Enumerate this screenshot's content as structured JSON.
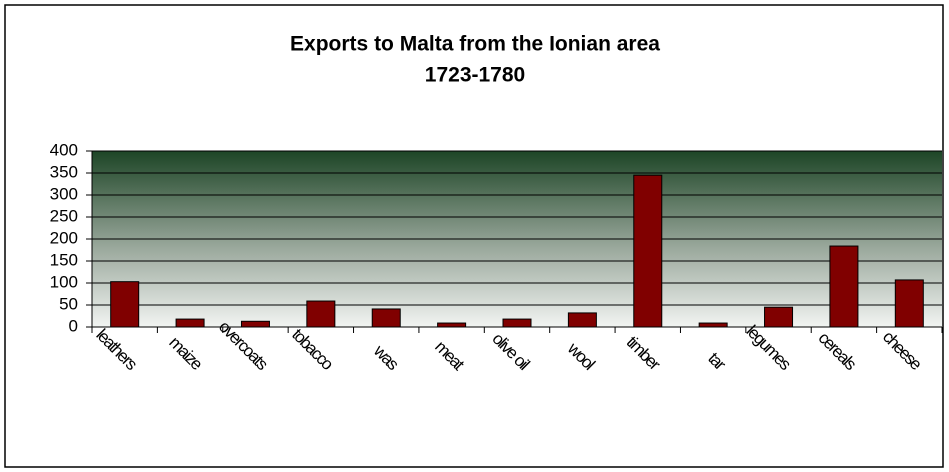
{
  "chart_data": {
    "type": "bar",
    "title": "Exports to Malta from the Ionian area",
    "subtitle": "1723-1780",
    "categories": [
      "leathers",
      "maize",
      "overcoats",
      "tobacco",
      "was",
      "meat",
      "olive oil",
      "wool",
      "timber",
      "tar",
      "legumes",
      "cereals",
      "cheese"
    ],
    "values": [
      103,
      18,
      13,
      59,
      41,
      9,
      18,
      32,
      345,
      9,
      45,
      184,
      107
    ],
    "color": "#800000",
    "ylim": [
      0,
      400
    ],
    "yticks": [
      0,
      50,
      100,
      150,
      200,
      250,
      300,
      350,
      400
    ],
    "grid": true
  }
}
